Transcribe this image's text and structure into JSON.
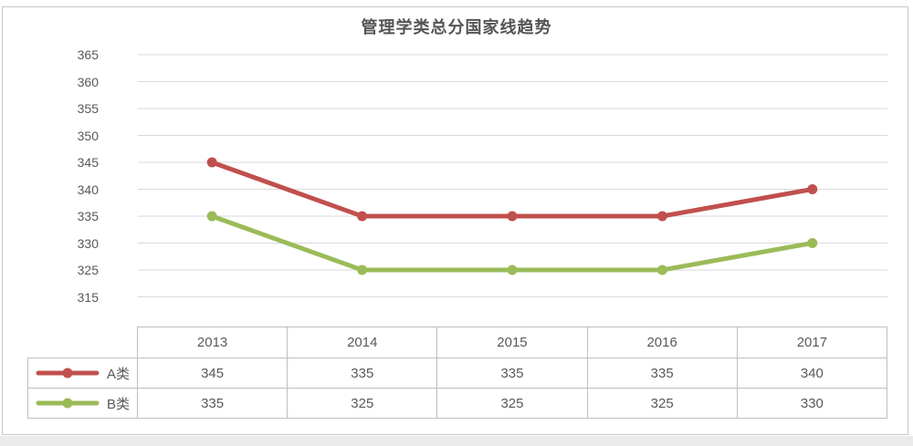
{
  "page": {
    "background": "#ffffff",
    "frame_border_color": "#c8c8c8",
    "bottom_strip_color": "#eaeaea"
  },
  "chart_data": {
    "type": "line",
    "title": "管理学类总分国家线趋势",
    "categories": [
      "2013",
      "2014",
      "2015",
      "2016",
      "2017"
    ],
    "series": [
      {
        "name": "A类",
        "color": "#C0504D",
        "values": [
          345,
          335,
          335,
          335,
          340
        ]
      },
      {
        "name": "B类",
        "color": "#9BBB59",
        "values": [
          335,
          325,
          325,
          325,
          330
        ]
      }
    ],
    "ytick_labels": [
      "365",
      "360",
      "355",
      "350",
      "345",
      "340",
      "335",
      "330",
      "325",
      "315"
    ],
    "y_axis_top_value": 365,
    "y_axis_step": 5,
    "grid": true,
    "gridline_color": "#D9D9D9",
    "text_color": "#595959",
    "legend_position": "data-table-left",
    "xlabel": "",
    "ylabel": ""
  }
}
